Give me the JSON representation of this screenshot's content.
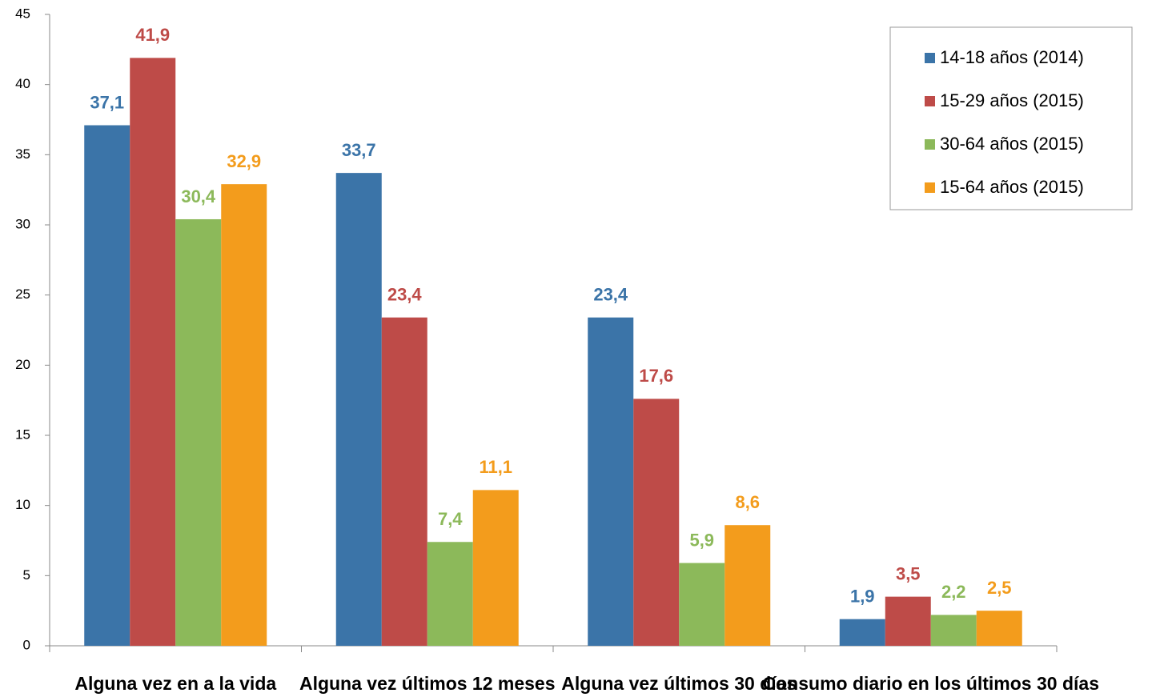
{
  "chart_data": {
    "type": "bar",
    "categories": [
      "Alguna vez en a la vida",
      "Alguna vez últimos 12 meses",
      "Alguna vez últimos 30 días",
      "Consumo diario en los últimos 30 días"
    ],
    "series": [
      {
        "name": "14-18 años (2014)",
        "color": "#3b74a8",
        "values": [
          37.1,
          33.7,
          23.4,
          1.9
        ],
        "value_labels": [
          "37,1",
          "33,7",
          "23,4",
          "1,9"
        ]
      },
      {
        "name": "15-29 años (2015)",
        "color": "#be4b48",
        "values": [
          41.9,
          23.4,
          17.6,
          3.5
        ],
        "value_labels": [
          "41,9",
          "23,4",
          "17,6",
          "3,5"
        ]
      },
      {
        "name": "30-64 años (2015)",
        "color": "#8cb95a",
        "values": [
          30.4,
          7.4,
          5.9,
          2.2
        ],
        "value_labels": [
          "30,4",
          "7,4",
          "5,9",
          "2,2"
        ]
      },
      {
        "name": "15-64 años (2015)",
        "color": "#f39c1c",
        "values": [
          32.9,
          11.1,
          8.6,
          2.5
        ],
        "value_labels": [
          "32,9",
          "11,1",
          "8,6",
          "2,5"
        ]
      }
    ],
    "ylim": [
      0,
      45
    ],
    "yticks": [
      0,
      5,
      10,
      15,
      20,
      25,
      30,
      35,
      40,
      45
    ],
    "legend": "top-right"
  }
}
